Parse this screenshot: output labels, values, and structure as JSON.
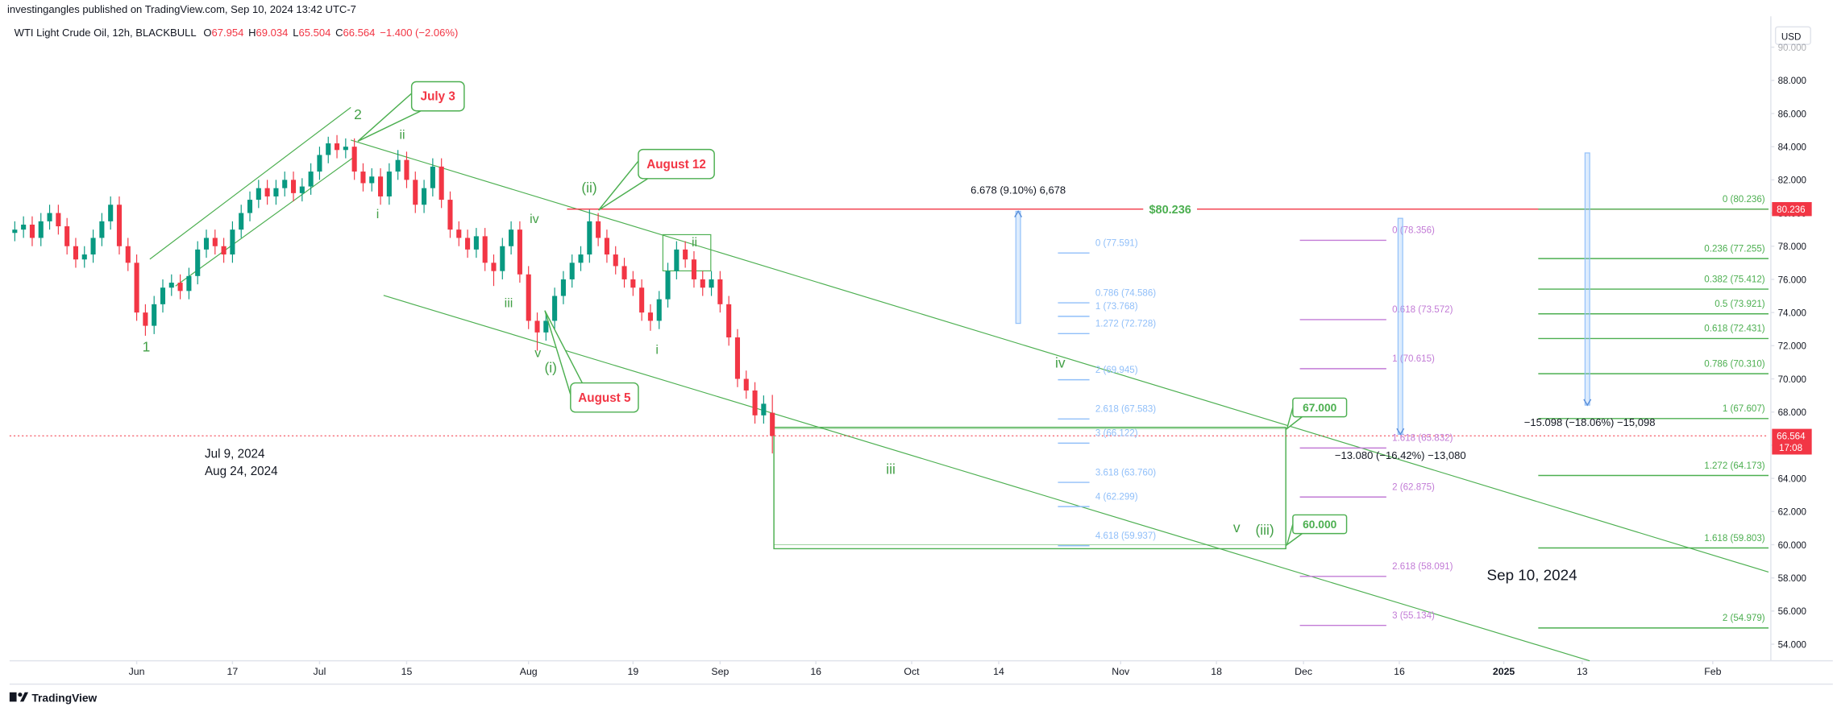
{
  "header": {
    "publisher": "investingangles published on TradingView.com, Sep 10, 2024 13:42 UTC-7",
    "ohlc_letters": [
      "O",
      "H",
      "L",
      "C"
    ],
    "change": "−1.400 (−2.06%)"
  },
  "footer": "TradingView",
  "chart_data": {
    "type": "candlestick",
    "title": "WTI Light Crude Oil, 12h, BLACKBULL",
    "x": [
      -14,
      -13,
      -12,
      -11,
      -10,
      -9,
      -8,
      -7,
      -6,
      -5,
      -4,
      -3,
      -2,
      -1,
      0,
      1,
      2,
      3,
      4,
      5,
      6,
      7,
      8,
      9,
      10,
      11,
      12,
      13,
      14,
      15,
      16,
      17,
      18,
      19,
      20,
      21,
      22,
      23,
      24,
      25,
      26,
      27,
      28,
      29,
      30,
      31,
      32,
      33,
      34,
      35,
      36,
      37,
      38,
      39,
      40,
      41,
      42,
      43,
      44,
      45,
      46,
      47,
      48,
      49,
      50,
      51,
      52,
      53,
      54,
      55,
      56,
      57,
      58,
      59,
      60,
      61,
      62,
      63,
      64,
      65,
      66,
      67,
      68,
      69,
      70,
      71,
      72,
      73
    ],
    "open": [
      78.8,
      79.0,
      79.3,
      78.5,
      79.5,
      80.0,
      79.2,
      78.0,
      77.2,
      77.5,
      78.5,
      79.5,
      80.5,
      78.0,
      77.0,
      74.0,
      73.2,
      74.5,
      75.5,
      75.8,
      75.3,
      76.2,
      77.8,
      78.5,
      78.0,
      77.5,
      79.0,
      80.0,
      80.8,
      81.5,
      81.0,
      81.5,
      82.0,
      81.2,
      81.6,
      82.5,
      83.5,
      84.2,
      83.8,
      84.0,
      82.5,
      81.8,
      82.2,
      81.0,
      82.5,
      83.2,
      82.0,
      80.5,
      81.5,
      82.8,
      80.8,
      79.0,
      78.5,
      77.8,
      78.6,
      77.0,
      76.5,
      78.0,
      79.0,
      76.3,
      73.5,
      72.8,
      73.5,
      75.0,
      76.0,
      77.0,
      77.5,
      79.5,
      78.5,
      77.5,
      76.8,
      76.0,
      75.5,
      74.0,
      73.5,
      74.8,
      76.5,
      77.8,
      77.2,
      76.0,
      75.5,
      76.0,
      74.5,
      72.5,
      70.0,
      69.3,
      67.8,
      67.954
    ],
    "high": [
      79.5,
      79.8,
      79.8,
      80.0,
      80.5,
      80.5,
      79.7,
      78.5,
      78.0,
      79.0,
      80.0,
      81.0,
      81.0,
      78.5,
      77.5,
      74.5,
      75.0,
      76.0,
      76.3,
      76.3,
      76.7,
      78.3,
      79.0,
      79.0,
      78.5,
      79.5,
      80.5,
      81.3,
      82.0,
      82.0,
      82.0,
      82.5,
      82.5,
      82.1,
      83.0,
      84.0,
      84.6,
      84.7,
      84.5,
      84.5,
      83.0,
      82.7,
      82.7,
      83.0,
      83.8,
      83.7,
      82.5,
      82.0,
      83.3,
      83.3,
      81.3,
      79.5,
      79.0,
      79.1,
      79.1,
      77.5,
      78.5,
      79.5,
      79.5,
      76.8,
      74.0,
      74.0,
      75.5,
      76.5,
      77.5,
      78.0,
      80.2,
      80.0,
      79.0,
      78.0,
      77.3,
      76.5,
      76.0,
      74.5,
      75.3,
      77.0,
      78.3,
      78.3,
      77.7,
      76.5,
      76.5,
      76.5,
      75.0,
      73.0,
      70.5,
      69.8,
      69.0,
      69.034
    ],
    "low": [
      78.3,
      78.5,
      78.0,
      78.0,
      79.0,
      78.7,
      77.5,
      76.7,
      76.7,
      77.0,
      78.0,
      79.0,
      77.5,
      76.5,
      73.5,
      72.6,
      72.7,
      74.0,
      75.0,
      74.8,
      74.8,
      75.7,
      77.3,
      77.5,
      77.0,
      77.0,
      78.5,
      79.5,
      80.3,
      80.5,
      80.5,
      81.0,
      80.7,
      80.7,
      81.1,
      82.0,
      83.0,
      83.3,
      83.3,
      82.0,
      81.3,
      81.3,
      80.5,
      80.5,
      82.0,
      81.5,
      80.0,
      80.0,
      81.0,
      80.3,
      78.5,
      78.0,
      77.3,
      77.3,
      76.5,
      75.6,
      76.0,
      77.5,
      75.8,
      73.0,
      71.7,
      72.3,
      73.0,
      74.5,
      75.5,
      76.5,
      77.0,
      78.0,
      77.0,
      76.3,
      75.5,
      75.0,
      73.5,
      72.9,
      73.0,
      74.3,
      76.0,
      76.7,
      75.5,
      75.0,
      75.0,
      74.0,
      72.0,
      69.5,
      68.8,
      67.3,
      67.3,
      65.504
    ],
    "close": [
      79.0,
      79.3,
      78.5,
      79.5,
      80.0,
      79.2,
      78.0,
      77.2,
      77.5,
      78.5,
      79.5,
      80.5,
      78.0,
      77.0,
      74.0,
      73.2,
      74.5,
      75.5,
      75.8,
      75.3,
      76.2,
      77.8,
      78.5,
      78.0,
      77.5,
      79.0,
      80.0,
      80.8,
      81.5,
      81.0,
      81.5,
      82.0,
      81.2,
      81.6,
      82.5,
      83.5,
      84.2,
      83.8,
      84.0,
      82.5,
      81.8,
      82.2,
      81.0,
      82.5,
      83.2,
      82.0,
      80.5,
      81.5,
      82.8,
      80.8,
      79.0,
      78.5,
      77.8,
      78.6,
      77.0,
      76.5,
      78.0,
      79.0,
      76.3,
      73.5,
      72.8,
      73.5,
      75.0,
      76.0,
      77.0,
      77.5,
      79.5,
      78.5,
      77.5,
      76.8,
      76.0,
      75.5,
      74.0,
      73.5,
      74.8,
      76.5,
      77.8,
      77.2,
      76.0,
      75.5,
      76.0,
      74.5,
      72.5,
      70.0,
      69.3,
      67.8,
      68.5,
      66.564
    ],
    "up_color": "#089981",
    "down_color": "#f23645",
    "xlim": [
      -14.6,
      187.4
    ],
    "xticks": [
      {
        "value": 0,
        "label": "Jun"
      },
      {
        "value": 11,
        "label": "17"
      },
      {
        "value": 21,
        "label": "Jul"
      },
      {
        "value": 31,
        "label": "15"
      },
      {
        "value": 45,
        "label": "Aug"
      },
      {
        "value": 57,
        "label": "19"
      },
      {
        "value": 67,
        "label": "Sep"
      },
      {
        "value": 78,
        "label": "16"
      },
      {
        "value": 89,
        "label": "Oct"
      },
      {
        "value": 99,
        "label": "14"
      },
      {
        "value": 113,
        "label": "Nov"
      },
      {
        "value": 124,
        "label": "18"
      },
      {
        "value": 134,
        "label": "Dec"
      },
      {
        "value": 145,
        "label": "16"
      },
      {
        "value": 157,
        "label": "2025"
      },
      {
        "value": 166,
        "label": "13"
      },
      {
        "value": 181,
        "label": "Feb"
      }
    ],
    "ylim": [
      53,
      92
    ],
    "yticks": [
      {
        "value": 54,
        "label": "54.000"
      },
      {
        "value": 56,
        "label": "56.000"
      },
      {
        "value": 58,
        "label": "58.000"
      },
      {
        "value": 60,
        "label": "60.000"
      },
      {
        "value": 62,
        "label": "62.000"
      },
      {
        "value": 64,
        "label": "64.000"
      },
      {
        "value": 66,
        "label": "66.000"
      },
      {
        "value": 68,
        "label": "68.000"
      },
      {
        "value": 70,
        "label": "70.000"
      },
      {
        "value": 72,
        "label": "72.000"
      },
      {
        "value": 74,
        "label": "74.000"
      },
      {
        "value": 76,
        "label": "76.000"
      },
      {
        "value": 78,
        "label": "78.000"
      },
      {
        "value": 80,
        "label": "80.000"
      },
      {
        "value": 82,
        "label": "82.000"
      },
      {
        "value": 84,
        "label": "84.000"
      },
      {
        "value": 86,
        "label": "86.000"
      },
      {
        "value": 88,
        "label": "88.000"
      },
      {
        "value": 90,
        "label": "90.000"
      }
    ],
    "grid": false,
    "y_axis_label": "USD",
    "last_price_time": "17:08",
    "resistance": {
      "value": 80.236,
      "label": "$80.236",
      "color": "#f23645"
    },
    "fib_sets": [
      {
        "color": "#90bff9",
        "levels": [
          {
            "value": 77.591,
            "label": "0 (77.591)"
          },
          {
            "value": 74.586,
            "label": "0.786 (74.586)"
          },
          {
            "value": 73.768,
            "label": "1 (73.768)"
          },
          {
            "value": 72.728,
            "label": "1.272 (72.728)"
          },
          {
            "value": 69.945,
            "label": "2 (69.945)"
          },
          {
            "value": 67.583,
            "label": "2.618 (67.583)"
          },
          {
            "value": 66.122,
            "label": "3 (66.122)"
          },
          {
            "value": 63.76,
            "label": "3.618 (63.760)"
          },
          {
            "value": 62.299,
            "label": "4 (62.299)"
          },
          {
            "value": 59.937,
            "label": "4.618 (59.937)"
          }
        ]
      },
      {
        "color": "#c27bd6",
        "levels": [
          {
            "value": 78.356,
            "label": "0 (78.356)"
          },
          {
            "value": 73.572,
            "label": "0.618 (73.572)"
          },
          {
            "value": 70.615,
            "label": "1 (70.615)"
          },
          {
            "value": 65.832,
            "label": "1.618 (65.832)"
          },
          {
            "value": 62.875,
            "label": "2 (62.875)"
          },
          {
            "value": 58.091,
            "label": "2.618 (58.091)"
          },
          {
            "value": 55.134,
            "label": "3 (55.134)"
          }
        ]
      },
      {
        "color": "#4caf50",
        "levels": [
          {
            "value": 80.236,
            "label": "0 (80.236)"
          },
          {
            "value": 77.255,
            "label": "0.236 (77.255)"
          },
          {
            "value": 75.412,
            "label": "0.382 (75.412)"
          },
          {
            "value": 73.921,
            "label": "0.5 (73.921)"
          },
          {
            "value": 72.431,
            "label": "0.618 (72.431)"
          },
          {
            "value": 70.31,
            "label": "0.786 (70.310)"
          },
          {
            "value": 67.607,
            "label": "1 (67.607)"
          },
          {
            "value": 64.173,
            "label": "1.272 (64.173)"
          },
          {
            "value": 59.803,
            "label": "1.618 (59.803)"
          },
          {
            "value": 54.979,
            "label": "2 (54.979)"
          }
        ]
      }
    ],
    "wave_labels": [
      "1",
      "2",
      "i",
      "ii",
      "iii",
      "iv",
      "v",
      "(i)",
      "(ii)",
      "i",
      "ii",
      "iii",
      "iv",
      "v",
      "(iii)"
    ],
    "callouts": [
      "July 3",
      "August 12",
      "August 5"
    ],
    "targets": [
      {
        "value": 67,
        "label": "67.000"
      },
      {
        "value": 60,
        "label": "60.000"
      }
    ],
    "measurements": [
      "6.678 (9.10%) 6,678",
      "−15.098 (−18.06%) −15,098",
      "−13.080 (−16.42%) −13,080"
    ],
    "dates": [
      "Jul 9, 2024",
      "Aug 24, 2024",
      "Sep 10, 2024"
    ]
  }
}
